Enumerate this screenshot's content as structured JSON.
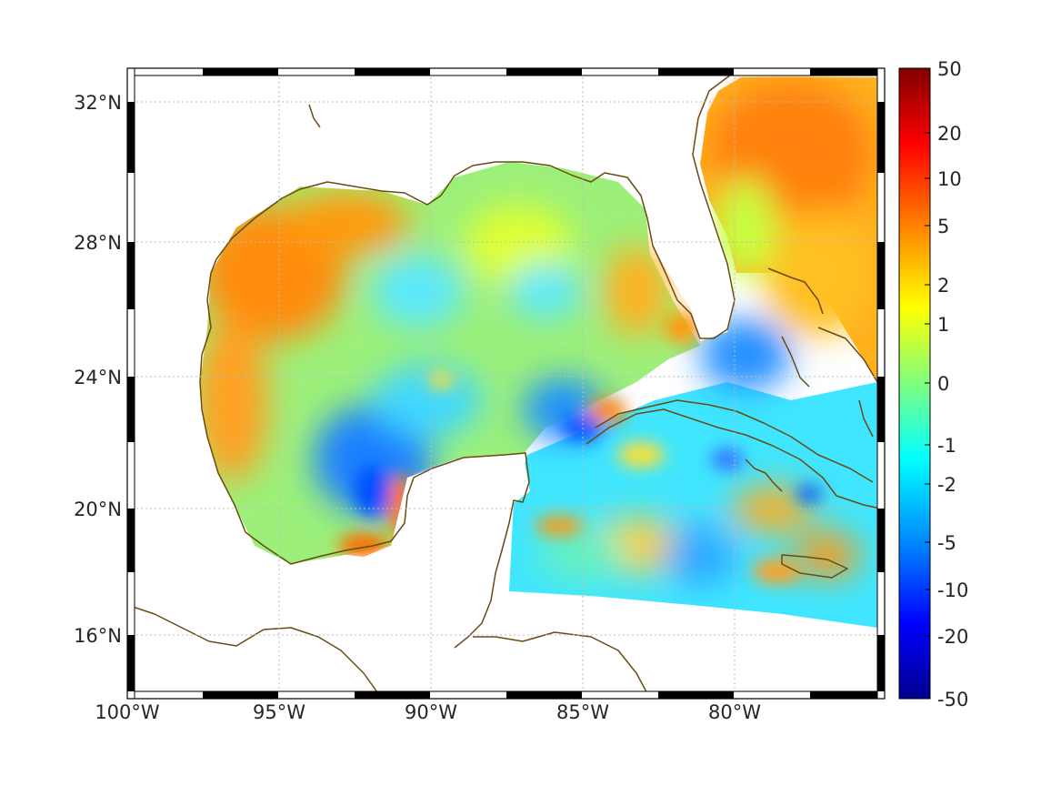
{
  "map": {
    "lat_labels": [
      "32°N",
      "28°N",
      "24°N",
      "20°N",
      "16°N"
    ],
    "lon_labels": [
      "100°W",
      "95°W",
      "90°W",
      "85°W",
      "80°W"
    ],
    "lat_ticks": [
      32,
      28,
      24,
      20,
      16
    ],
    "lon_ticks": [
      -100,
      -95,
      -90,
      -85,
      -80
    ],
    "extent": {
      "lon": [
        -100,
        -75.1
      ],
      "lat": [
        14.2,
        33.0
      ]
    },
    "grid": true,
    "coastline_color": "#6b4a12"
  },
  "colorbar": {
    "labels": [
      "50",
      "20",
      "10",
      "5",
      "2",
      "1",
      "0",
      "-1",
      "-2",
      "-5",
      "-10",
      "-20",
      "-50"
    ],
    "values": [
      50,
      20,
      10,
      5,
      2,
      1,
      0,
      -1,
      -2,
      -5,
      -10,
      -20,
      -50
    ],
    "colormap": "jet",
    "colors": [
      "#7f0000",
      "#ff0000",
      "#ff8c00",
      "#ffff00",
      "#7fff7f",
      "#00ffff",
      "#0080ff",
      "#0000ff",
      "#00008f"
    ]
  }
}
